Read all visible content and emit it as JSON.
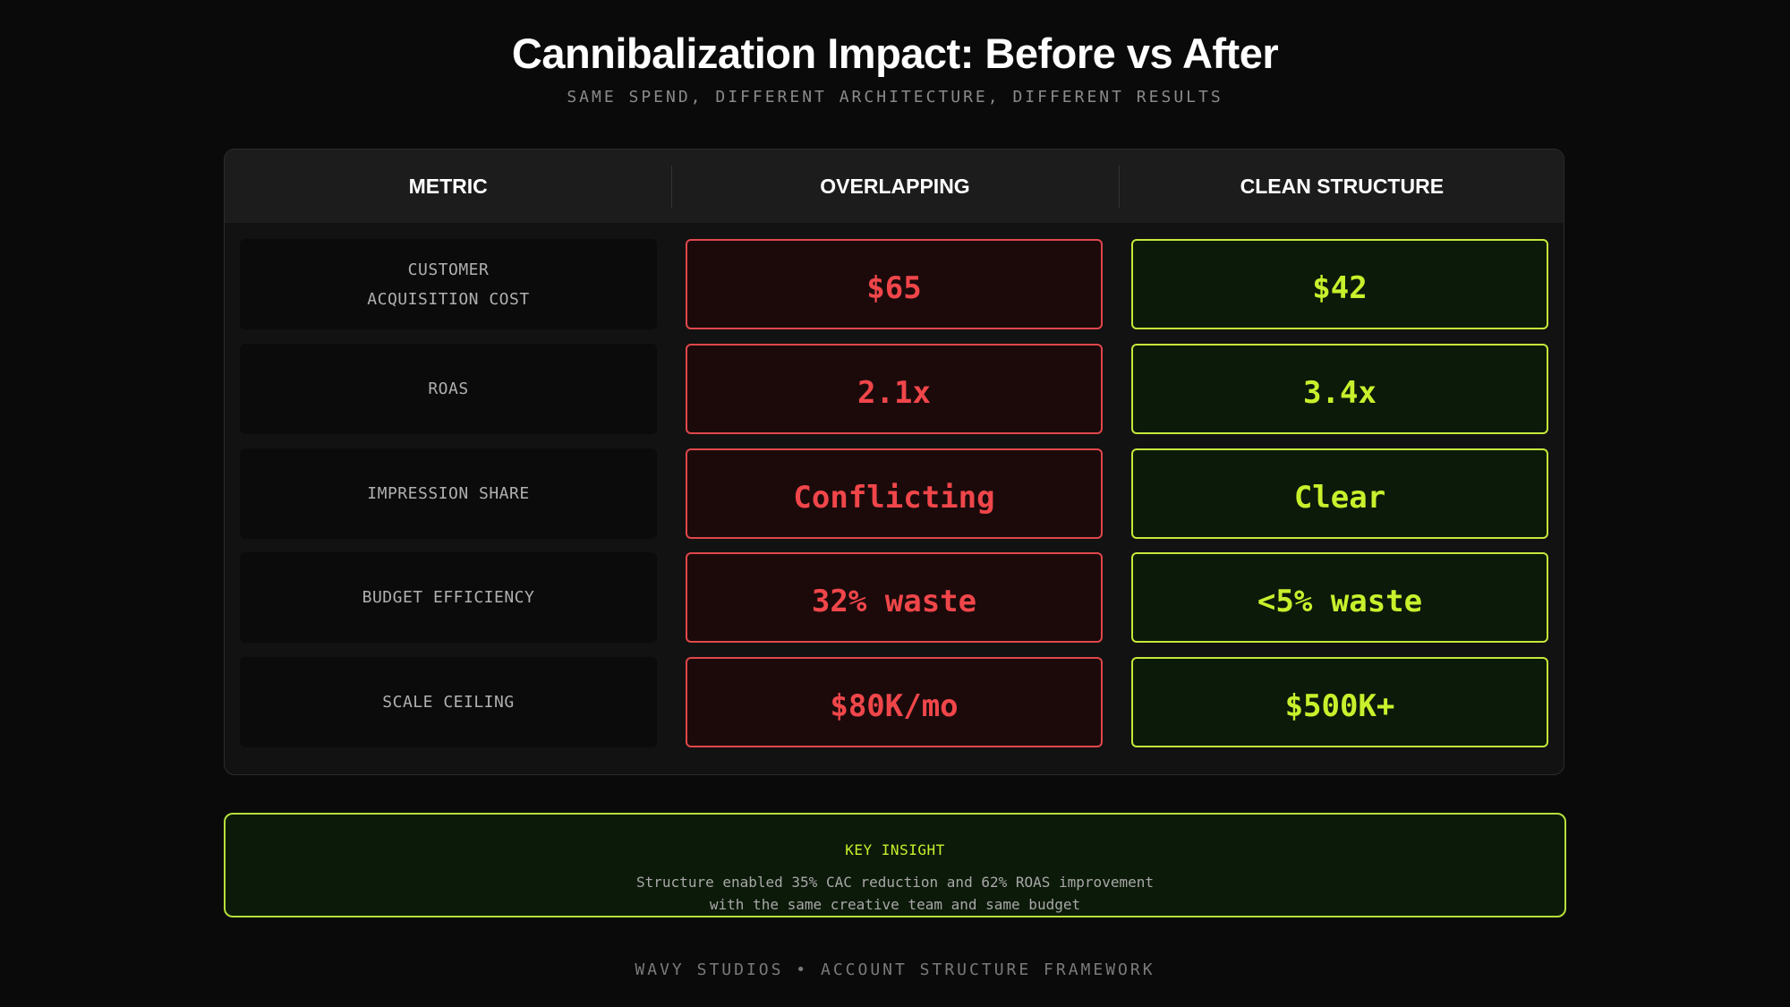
{
  "header": {
    "title": "Cannibalization Impact: Before vs After",
    "subtitle": "SAME SPEND, DIFFERENT ARCHITECTURE, DIFFERENT RESULTS"
  },
  "table": {
    "columns": [
      "METRIC",
      "OVERLAPPING",
      "CLEAN STRUCTURE"
    ],
    "rows": [
      {
        "metric": "CUSTOMER\nACQUISITION COST",
        "overlapping": "$65",
        "clean": "$42"
      },
      {
        "metric": "ROAS",
        "overlapping": "2.1x",
        "clean": "3.4x"
      },
      {
        "metric": "IMPRESSION SHARE",
        "overlapping": "Conflicting",
        "clean": "Clear"
      },
      {
        "metric": "BUDGET EFFICIENCY",
        "overlapping": "32% waste",
        "clean": "<5% waste"
      },
      {
        "metric": "SCALE CEILING",
        "overlapping": "$80K/mo",
        "clean": "$500K+"
      }
    ]
  },
  "insight": {
    "title": "KEY INSIGHT",
    "line1": "Structure enabled 35% CAC reduction and 62% ROAS improvement",
    "line2": "with the same creative team and same budget"
  },
  "footer": {
    "text": "WAVY STUDIOS • ACCOUNT STRUCTURE FRAMEWORK"
  },
  "colors": {
    "background": "#0a0a0a",
    "bad": "#f0464a",
    "good": "#c8f02c"
  }
}
